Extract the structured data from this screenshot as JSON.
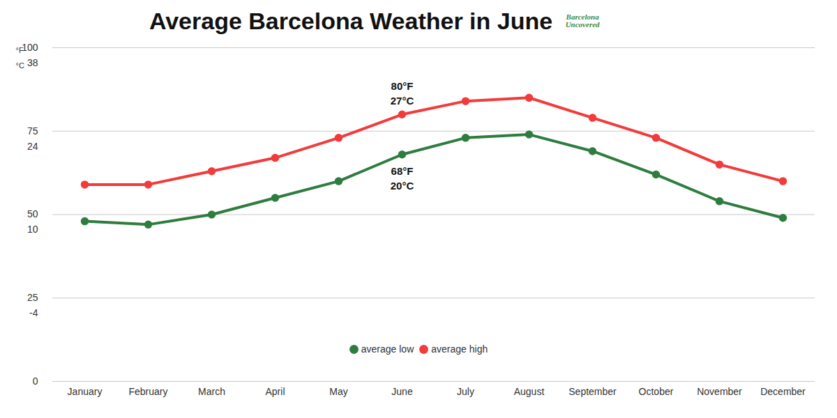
{
  "chart_data": {
    "type": "line",
    "title": "Average Barcelona Weather in June",
    "logo": "Barcelona Uncovered",
    "categories": [
      "January",
      "February",
      "March",
      "April",
      "May",
      "June",
      "July",
      "August",
      "September",
      "October",
      "November",
      "December"
    ],
    "series": [
      {
        "name": "average low",
        "color": "#2e7d3f",
        "marker": "circle",
        "values": [
          48,
          47,
          50,
          55,
          60,
          68,
          73,
          74,
          69,
          62,
          54,
          49
        ]
      },
      {
        "name": "average high",
        "color": "#f23b3b",
        "marker": "circle",
        "values": [
          59,
          59,
          63,
          67,
          73,
          80,
          84,
          85,
          79,
          73,
          65,
          60
        ]
      }
    ],
    "ylabel": "°F",
    "ylim": [
      0,
      100
    ],
    "yticks": [
      0,
      25,
      50,
      75,
      100
    ],
    "y2label": "°C",
    "y2lim": [
      -17.8,
      37.8
    ],
    "y2ticks": [
      {
        "value": -3.9,
        "label": "-4"
      },
      {
        "value": 10,
        "label": "10"
      },
      {
        "value": 23.9,
        "label": "24"
      },
      {
        "value": 37.8,
        "label": "38"
      }
    ],
    "grid": true,
    "legend": "bottom",
    "annotations": [
      {
        "category": "June",
        "series": "average high",
        "text": [
          "80°F",
          "27°C"
        ]
      },
      {
        "category": "June",
        "series": "average low",
        "text": [
          "68°F",
          "20°C"
        ]
      }
    ]
  }
}
